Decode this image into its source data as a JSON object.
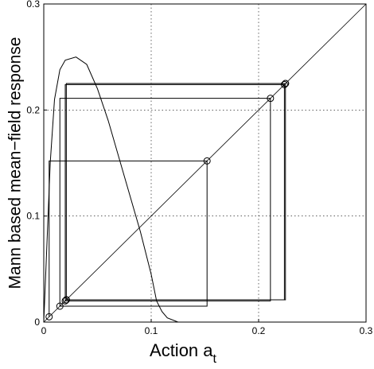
{
  "chart_data": {
    "type": "cobweb",
    "xlabel": "Action a",
    "xlabel_sub": "t",
    "ylabel": "Mann based mean−field response",
    "xlim": [
      0,
      0.3
    ],
    "ylim": [
      0,
      0.3
    ],
    "xticks": [
      0,
      0.1,
      0.2,
      0.3
    ],
    "yticks": [
      0,
      0.1,
      0.2,
      0.3
    ],
    "grid": true,
    "color": "#000000",
    "response": {
      "x": [
        0,
        0.002,
        0.006,
        0.01,
        0.015,
        0.02,
        0.03,
        0.04,
        0.05,
        0.06,
        0.07,
        0.08,
        0.09,
        0.1,
        0.105,
        0.11,
        0.115,
        0.125
      ],
      "y": [
        0,
        0.05,
        0.15,
        0.21,
        0.238,
        0.247,
        0.25,
        0.243,
        0.22,
        0.19,
        0.155,
        0.12,
        0.085,
        0.045,
        0.02,
        0.01,
        0.004,
        0
      ]
    },
    "iterates": [
      0.005,
      0.152,
      0.015,
      0.211,
      0.02,
      0.224,
      0.021,
      0.225,
      0.021,
      0.225,
      0.021
    ]
  }
}
